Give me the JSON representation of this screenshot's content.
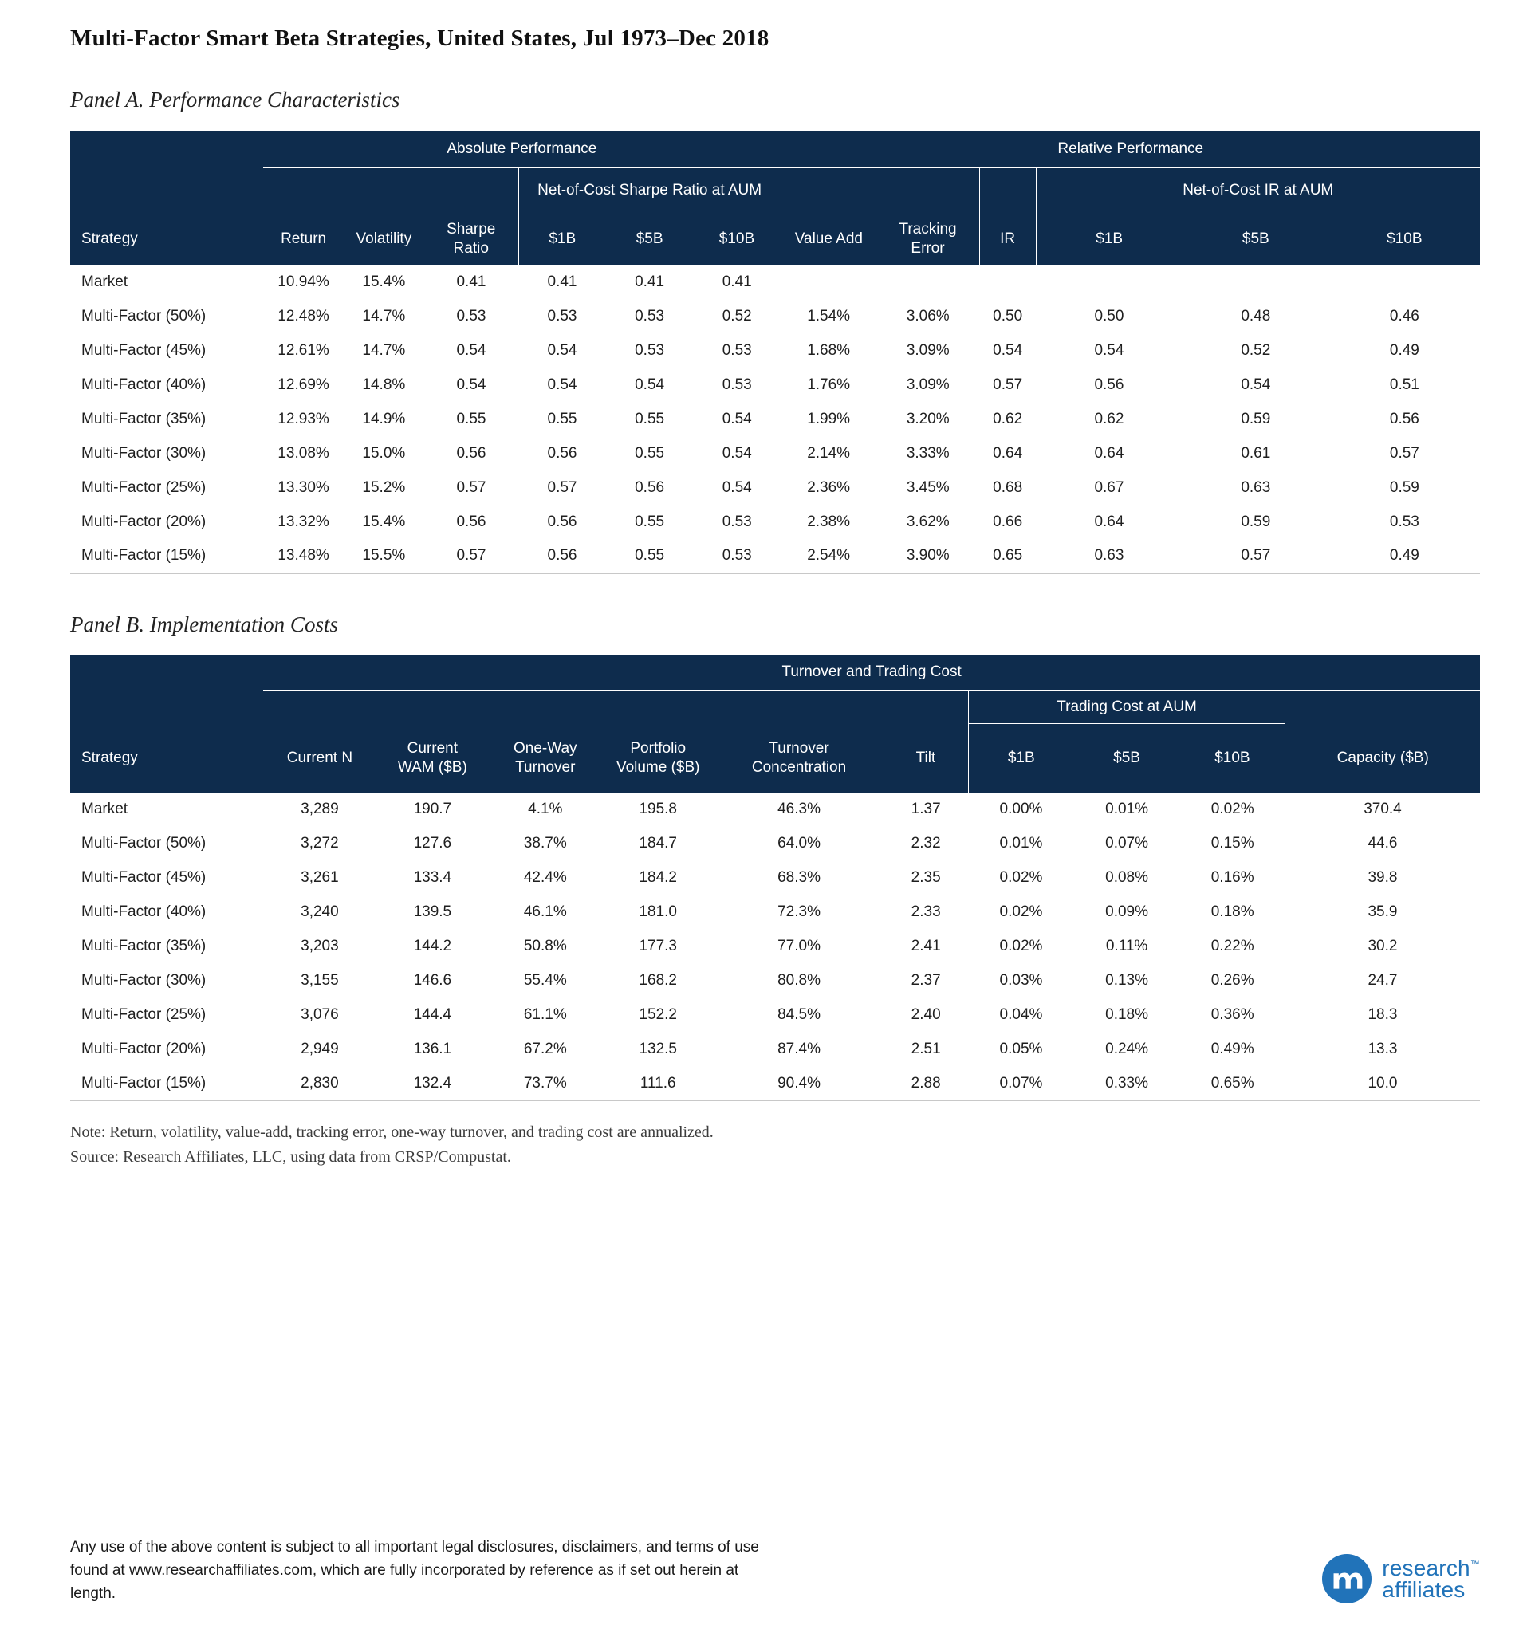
{
  "page": {
    "title": "Multi-Factor Smart Beta Strategies, United States, Jul 1973–Dec 2018"
  },
  "colors": {
    "header_navy": "#0e2c4d",
    "border_gray": "#c8c8c8",
    "logo_blue": "#2173b9",
    "text_dark": "#1f1f1f"
  },
  "panelA": {
    "label": "Panel A. Performance Characteristics",
    "groups": {
      "absolute": "Absolute Performance",
      "relative": "Relative Performance",
      "sharpe_aum": "Net-of-Cost Sharpe Ratio at AUM",
      "ir_aum": "Net-of-Cost IR at AUM"
    },
    "columns": [
      "Strategy",
      "Return",
      "Volatility",
      "Sharpe Ratio",
      "$1B",
      "$5B",
      "$10B",
      "Value Add",
      "Tracking Error",
      "IR",
      "$1B",
      "$5B",
      "$10B"
    ],
    "rows": [
      [
        "Market",
        "10.94%",
        "15.4%",
        "0.41",
        "0.41",
        "0.41",
        "0.41",
        "",
        "",
        "",
        "",
        "",
        ""
      ],
      [
        "Multi-Factor (50%)",
        "12.48%",
        "14.7%",
        "0.53",
        "0.53",
        "0.53",
        "0.52",
        "1.54%",
        "3.06%",
        "0.50",
        "0.50",
        "0.48",
        "0.46"
      ],
      [
        "Multi-Factor (45%)",
        "12.61%",
        "14.7%",
        "0.54",
        "0.54",
        "0.53",
        "0.53",
        "1.68%",
        "3.09%",
        "0.54",
        "0.54",
        "0.52",
        "0.49"
      ],
      [
        "Multi-Factor (40%)",
        "12.69%",
        "14.8%",
        "0.54",
        "0.54",
        "0.54",
        "0.53",
        "1.76%",
        "3.09%",
        "0.57",
        "0.56",
        "0.54",
        "0.51"
      ],
      [
        "Multi-Factor (35%)",
        "12.93%",
        "14.9%",
        "0.55",
        "0.55",
        "0.55",
        "0.54",
        "1.99%",
        "3.20%",
        "0.62",
        "0.62",
        "0.59",
        "0.56"
      ],
      [
        "Multi-Factor (30%)",
        "13.08%",
        "15.0%",
        "0.56",
        "0.56",
        "0.55",
        "0.54",
        "2.14%",
        "3.33%",
        "0.64",
        "0.64",
        "0.61",
        "0.57"
      ],
      [
        "Multi-Factor (25%)",
        "13.30%",
        "15.2%",
        "0.57",
        "0.57",
        "0.56",
        "0.54",
        "2.36%",
        "3.45%",
        "0.68",
        "0.67",
        "0.63",
        "0.59"
      ],
      [
        "Multi-Factor (20%)",
        "13.32%",
        "15.4%",
        "0.56",
        "0.56",
        "0.55",
        "0.53",
        "2.38%",
        "3.62%",
        "0.66",
        "0.64",
        "0.59",
        "0.53"
      ],
      [
        "Multi-Factor (15%)",
        "13.48%",
        "15.5%",
        "0.57",
        "0.56",
        "0.55",
        "0.53",
        "2.54%",
        "3.90%",
        "0.65",
        "0.63",
        "0.57",
        "0.49"
      ]
    ]
  },
  "panelB": {
    "label": "Panel B. Implementation Costs",
    "groups": {
      "turnover": "Turnover and Trading Cost",
      "trading_cost_aum": "Trading Cost at AUM"
    },
    "columns": [
      "Strategy",
      "Current N",
      "Current WAM ($B)",
      "One-Way Turnover",
      "Portfolio Volume ($B)",
      "Turnover Concentration",
      "Tilt",
      "$1B",
      "$5B",
      "$10B",
      "Capacity ($B)"
    ],
    "rows": [
      [
        "Market",
        "3,289",
        "190.7",
        "4.1%",
        "195.8",
        "46.3%",
        "1.37",
        "0.00%",
        "0.01%",
        "0.02%",
        "370.4"
      ],
      [
        "Multi-Factor (50%)",
        "3,272",
        "127.6",
        "38.7%",
        "184.7",
        "64.0%",
        "2.32",
        "0.01%",
        "0.07%",
        "0.15%",
        "44.6"
      ],
      [
        "Multi-Factor (45%)",
        "3,261",
        "133.4",
        "42.4%",
        "184.2",
        "68.3%",
        "2.35",
        "0.02%",
        "0.08%",
        "0.16%",
        "39.8"
      ],
      [
        "Multi-Factor (40%)",
        "3,240",
        "139.5",
        "46.1%",
        "181.0",
        "72.3%",
        "2.33",
        "0.02%",
        "0.09%",
        "0.18%",
        "35.9"
      ],
      [
        "Multi-Factor (35%)",
        "3,203",
        "144.2",
        "50.8%",
        "177.3",
        "77.0%",
        "2.41",
        "0.02%",
        "0.11%",
        "0.22%",
        "30.2"
      ],
      [
        "Multi-Factor (30%)",
        "3,155",
        "146.6",
        "55.4%",
        "168.2",
        "80.8%",
        "2.37",
        "0.03%",
        "0.13%",
        "0.26%",
        "24.7"
      ],
      [
        "Multi-Factor (25%)",
        "3,076",
        "144.4",
        "61.1%",
        "152.2",
        "84.5%",
        "2.40",
        "0.04%",
        "0.18%",
        "0.36%",
        "18.3"
      ],
      [
        "Multi-Factor (20%)",
        "2,949",
        "136.1",
        "67.2%",
        "132.5",
        "87.4%",
        "2.51",
        "0.05%",
        "0.24%",
        "0.49%",
        "13.3"
      ],
      [
        "Multi-Factor (15%)",
        "2,830",
        "132.4",
        "73.7%",
        "111.6",
        "90.4%",
        "2.88",
        "0.07%",
        "0.33%",
        "0.65%",
        "10.0"
      ]
    ]
  },
  "notes": {
    "note": "Note: Return, volatility, value-add, tracking error, one-way turnover, and trading cost are annualized.",
    "source": "Source: Research Affiliates, LLC, using data from CRSP/Compustat."
  },
  "footer": {
    "disclaimer_pre": "Any use of the above content is subject to all important legal disclosures, disclaimers, and terms of use found at ",
    "link": "www.researchaffiliates.com",
    "disclaimer_post": ", which are fully incorporated by reference as if set out herein at length.",
    "logo": {
      "line1": "research",
      "tm": "™",
      "line2": "affiliates"
    }
  }
}
